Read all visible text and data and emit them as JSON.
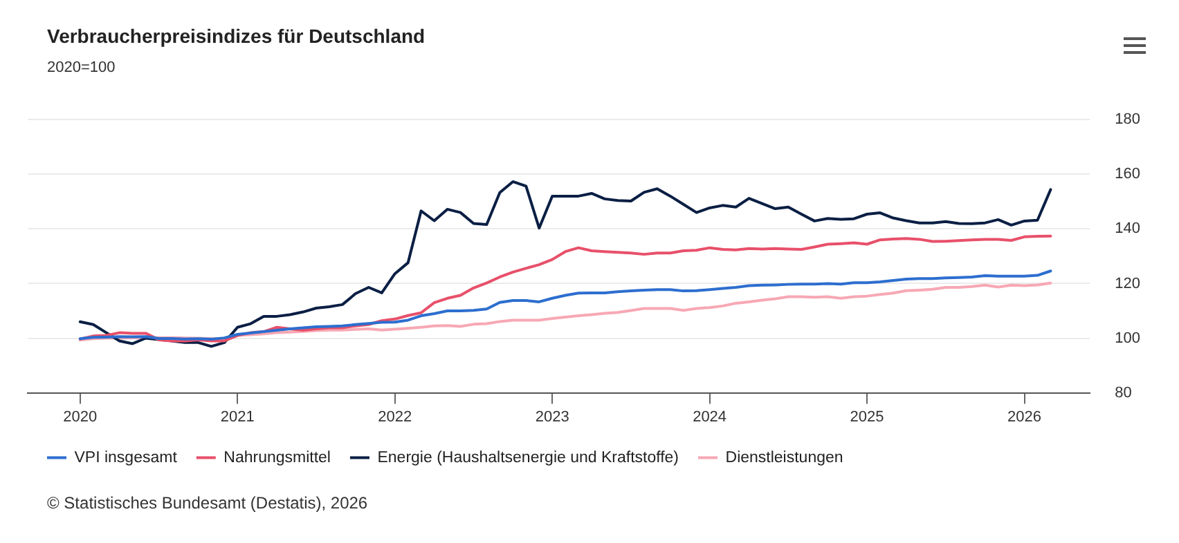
{
  "chart_data": {
    "type": "line",
    "title": "Verbraucherpreisindizes für Deutschland",
    "subtitle": "2020=100",
    "x": [
      "2020-01",
      "2020-02",
      "2020-03",
      "2020-04",
      "2020-05",
      "2020-06",
      "2020-07",
      "2020-08",
      "2020-09",
      "2020-10",
      "2020-11",
      "2020-12",
      "2021-01",
      "2021-02",
      "2021-03",
      "2021-04",
      "2021-05",
      "2021-06",
      "2021-07",
      "2021-08",
      "2021-09",
      "2021-10",
      "2021-11",
      "2021-12",
      "2022-01",
      "2022-02",
      "2022-03",
      "2022-04",
      "2022-05",
      "2022-06",
      "2022-07",
      "2022-08",
      "2022-09",
      "2022-10",
      "2022-11",
      "2022-12",
      "2023-01",
      "2023-02",
      "2023-03",
      "2023-04",
      "2023-05",
      "2023-06",
      "2023-07",
      "2023-08",
      "2023-09",
      "2023-10",
      "2023-11",
      "2023-12",
      "2024-01",
      "2024-02",
      "2024-03",
      "2024-04",
      "2024-05",
      "2024-06",
      "2024-07",
      "2024-08",
      "2024-09",
      "2024-10",
      "2024-11",
      "2024-12",
      "2025-01",
      "2025-02",
      "2025-03",
      "2025-04",
      "2025-05",
      "2025-06",
      "2025-07",
      "2025-08",
      "2025-09",
      "2025-10",
      "2025-11",
      "2025-12",
      "2026-01",
      "2026-02",
      "2026-03"
    ],
    "series": [
      {
        "name": "VPI insgesamt",
        "color": "#2d6ecf",
        "values": [
          99.8,
          100.3,
          100.4,
          100.6,
          100.5,
          100.6,
          99.9,
          99.9,
          99.7,
          99.8,
          99.6,
          100.1,
          101.4,
          101.9,
          102.4,
          102.9,
          103.4,
          103.8,
          104.2,
          104.3,
          104.5,
          105,
          105.4,
          105.8,
          105.9,
          106.6,
          108.2,
          109,
          110,
          110,
          110.2,
          110.7,
          113.1,
          113.8,
          113.8,
          113.3,
          114.6,
          115.7,
          116.5,
          116.6,
          116.6,
          117,
          117.3,
          117.6,
          117.8,
          117.8,
          117.3,
          117.4,
          117.8,
          118.2,
          118.6,
          119.2,
          119.4,
          119.5,
          119.7,
          119.8,
          119.8,
          120,
          119.8,
          120.3,
          120.3,
          120.6,
          121.1,
          121.6,
          121.8,
          121.8,
          122.1,
          122.2,
          122.4,
          122.9,
          122.7,
          122.7,
          122.7,
          123,
          124.6
        ]
      },
      {
        "name": "Nahrungsmittel",
        "color": "#e8506a",
        "values": [
          99.7,
          100.8,
          101,
          102,
          101.8,
          101.8,
          99.4,
          99,
          99,
          99.4,
          99,
          99,
          101,
          102,
          102.4,
          104,
          103.4,
          102.9,
          103.4,
          103.8,
          103.8,
          104.5,
          105,
          106.4,
          107,
          108.3,
          109.3,
          113,
          114.6,
          115.7,
          118.4,
          120.2,
          122.4,
          124.2,
          125.6,
          126.9,
          128.8,
          131.7,
          133.1,
          132,
          131.7,
          131.4,
          131.2,
          130.7,
          131.2,
          131.2,
          132,
          132.2,
          133.1,
          132.5,
          132.3,
          132.8,
          132.6,
          132.8,
          132.6,
          132.5,
          133.4,
          134.4,
          134.6,
          134.9,
          134.4,
          136,
          136.3,
          136.5,
          136.2,
          135.4,
          135.5,
          135.7,
          136,
          136.2,
          136.2,
          135.8,
          137.1,
          137.3,
          137.4
        ]
      },
      {
        "name": "Energie (Haushaltsenergie und Kraftstoffe)",
        "color": "#0b1f44",
        "values": [
          106,
          105,
          102,
          99,
          98,
          100,
          99.5,
          99,
          98.4,
          98.4,
          97,
          98.4,
          104,
          105.3,
          108,
          108,
          108.6,
          109.6,
          111,
          111.5,
          112.3,
          116.3,
          118.6,
          116.6,
          123.6,
          127.6,
          146.6,
          143,
          147.2,
          146,
          142,
          141.6,
          153.3,
          157.3,
          155.7,
          140.3,
          152,
          152,
          152,
          153,
          151,
          150.4,
          150.2,
          153.4,
          154.7,
          152,
          149,
          146,
          147.7,
          148.6,
          148,
          151.2,
          149.3,
          147.4,
          148,
          145.4,
          142.9,
          143.8,
          143.5,
          143.7,
          145.4,
          145.9,
          144,
          143,
          142.2,
          142.2,
          142.7,
          142,
          141.9,
          142.2,
          143.4,
          141.4,
          142.9,
          143.2,
          154.4
        ]
      },
      {
        "name": "Dienstleistungen",
        "color": "#f7a8b4",
        "values": [
          99.3,
          99.8,
          100,
          100,
          100.1,
          100.1,
          100.2,
          100.2,
          100.1,
          100,
          99.8,
          99.9,
          101,
          101.3,
          101.6,
          102,
          102.2,
          102.5,
          102.8,
          103,
          103,
          103.2,
          103.4,
          103,
          103.3,
          103.6,
          104,
          104.5,
          104.6,
          104.3,
          105.1,
          105.3,
          106.1,
          106.6,
          106.6,
          106.6,
          107.2,
          107.7,
          108.2,
          108.6,
          109.1,
          109.4,
          110.1,
          110.9,
          110.9,
          110.9,
          110.2,
          110.9,
          111.2,
          111.8,
          112.8,
          113.3,
          113.9,
          114.4,
          115.2,
          115.2,
          115,
          115.2,
          114.6,
          115.2,
          115.4,
          116,
          116.5,
          117.4,
          117.6,
          117.9,
          118.6,
          118.6,
          118.9,
          119.4,
          118.7,
          119.4,
          119.2,
          119.5,
          120.2
        ]
      }
    ],
    "xlim": [
      "2019-09",
      "2026-06"
    ],
    "xticks": [
      {
        "value": "2020",
        "label": "2020"
      },
      {
        "value": "2021",
        "label": "2021"
      },
      {
        "value": "2022",
        "label": "2022"
      },
      {
        "value": "2023",
        "label": "2023"
      },
      {
        "value": "2024",
        "label": "2024"
      },
      {
        "value": "2025",
        "label": "2025"
      },
      {
        "value": "2026",
        "label": "2026"
      }
    ],
    "ylim": [
      80,
      180
    ],
    "yticks": [
      80,
      100,
      120,
      140,
      160,
      180
    ],
    "grid": "y",
    "legend": "bottom",
    "marker": "none",
    "line_style": "solid",
    "annotations": [
      "© Statistisches Bundesamt (Destatis), 2026"
    ]
  }
}
